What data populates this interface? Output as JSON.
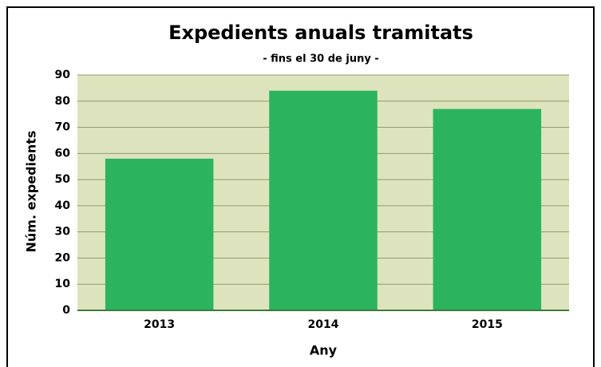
{
  "chart_data": {
    "type": "bar",
    "title": "Expedients anuals tramitats",
    "subtitle": "- fins el 30 de juny -",
    "x_label": "Any",
    "y_label": "Núm. expedients",
    "categories": [
      "2013",
      "2014",
      "2015"
    ],
    "values": [
      58,
      84,
      77
    ],
    "color": "#2bb35e",
    "ylim": [
      0,
      90
    ],
    "yticks": [
      0,
      10,
      20,
      30,
      40,
      50,
      60,
      70,
      80,
      90
    ],
    "grid": true
  }
}
